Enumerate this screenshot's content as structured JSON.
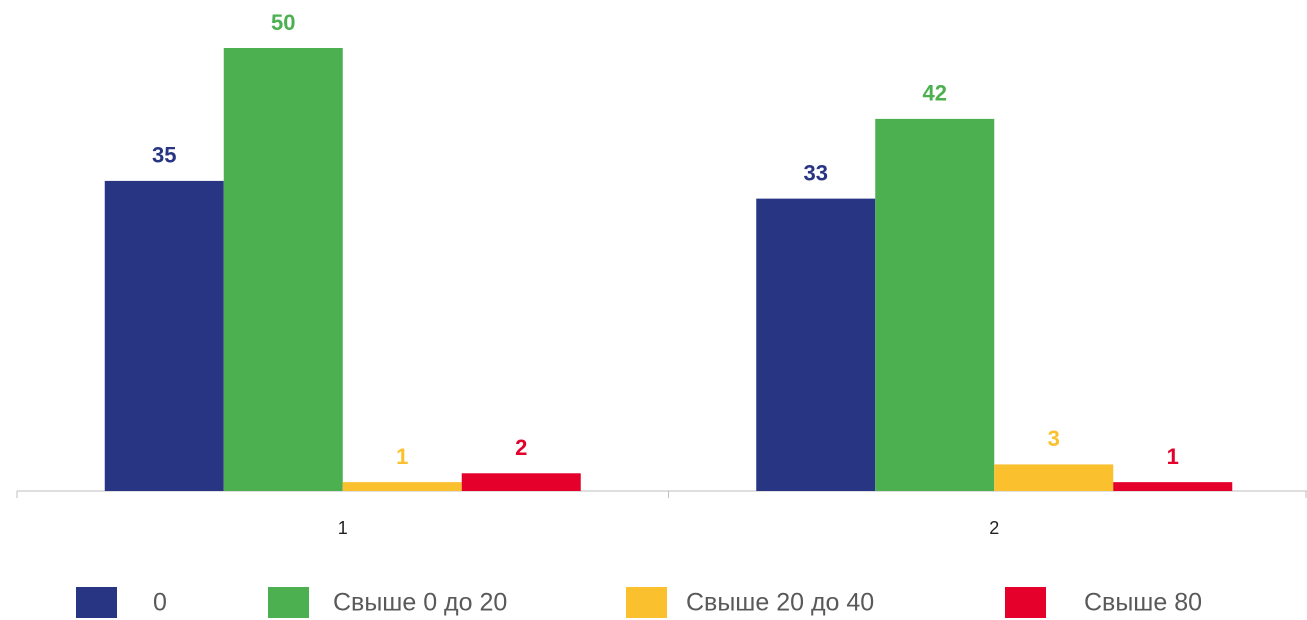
{
  "chart_data": {
    "type": "bar",
    "categories": [
      "1",
      "2"
    ],
    "series": [
      {
        "name": "0",
        "color": "#283583",
        "values": [
          35,
          33
        ]
      },
      {
        "name": "Свыше 0 до 20",
        "color": "#4caf50",
        "values": [
          50,
          42
        ]
      },
      {
        "name": "Свыше 20 до 40",
        "color": "#fbc02d",
        "values": [
          1,
          3
        ]
      },
      {
        "name": "Свыше 80",
        "color": "#e4002b",
        "values": [
          2,
          1
        ]
      }
    ]
  }
}
